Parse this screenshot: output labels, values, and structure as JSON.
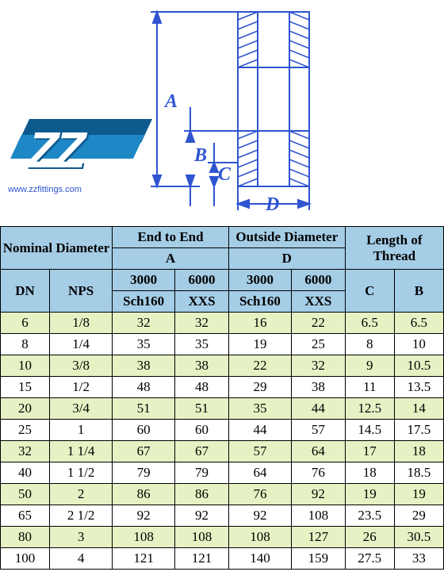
{
  "diagram": {
    "labels": {
      "A": "A",
      "B": "B",
      "C": "C",
      "D": "D"
    },
    "colors": {
      "line": "#2f54d0",
      "label": "#2f54d0",
      "hatch": "#2f54d0",
      "logo_dark": "#0d5a8f",
      "logo_light": "#1e88c7",
      "logo_text": "ZZ"
    }
  },
  "site_url": "www.zzfittings.com",
  "header": {
    "nominal_diameter": "Nominal Diameter",
    "end_to_end": "End to End",
    "outside_diameter": "Outside Diameter",
    "length_of_thread": "Length of Thread",
    "A": "A",
    "D": "D",
    "DN": "DN",
    "NPS": "NPS",
    "p3000": "3000",
    "p6000": "6000",
    "sch160": "Sch160",
    "xxs": "XXS",
    "C_hdr": "C",
    "B_hdr": "B"
  },
  "rows": [
    {
      "dn": "6",
      "nps": "1/8",
      "a3": "32",
      "a6": "32",
      "d3": "16",
      "d6": "22",
      "c": "6.5",
      "b": "6.5"
    },
    {
      "dn": "8",
      "nps": "1/4",
      "a3": "35",
      "a6": "35",
      "d3": "19",
      "d6": "25",
      "c": "8",
      "b": "10"
    },
    {
      "dn": "10",
      "nps": "3/8",
      "a3": "38",
      "a6": "38",
      "d3": "22",
      "d6": "32",
      "c": "9",
      "b": "10.5"
    },
    {
      "dn": "15",
      "nps": "1/2",
      "a3": "48",
      "a6": "48",
      "d3": "29",
      "d6": "38",
      "c": "11",
      "b": "13.5"
    },
    {
      "dn": "20",
      "nps": "3/4",
      "a3": "51",
      "a6": "51",
      "d3": "35",
      "d6": "44",
      "c": "12.5",
      "b": "14"
    },
    {
      "dn": "25",
      "nps": "1",
      "a3": "60",
      "a6": "60",
      "d3": "44",
      "d6": "57",
      "c": "14.5",
      "b": "17.5"
    },
    {
      "dn": "32",
      "nps": "1 1/4",
      "a3": "67",
      "a6": "67",
      "d3": "57",
      "d6": "64",
      "c": "17",
      "b": "18"
    },
    {
      "dn": "40",
      "nps": "1 1/2",
      "a3": "79",
      "a6": "79",
      "d3": "64",
      "d6": "76",
      "c": "18",
      "b": "18.5"
    },
    {
      "dn": "50",
      "nps": "2",
      "a3": "86",
      "a6": "86",
      "d3": "76",
      "d6": "92",
      "c": "19",
      "b": "19"
    },
    {
      "dn": "65",
      "nps": "2 1/2",
      "a3": "92",
      "a6": "92",
      "d3": "92",
      "d6": "108",
      "c": "23.5",
      "b": "29"
    },
    {
      "dn": "80",
      "nps": "3",
      "a3": "108",
      "a6": "108",
      "d3": "108",
      "d6": "127",
      "c": "26",
      "b": "30.5"
    },
    {
      "dn": "100",
      "nps": "4",
      "a3": "121",
      "a6": "121",
      "d3": "140",
      "d6": "159",
      "c": "27.5",
      "b": "33"
    }
  ],
  "styling": {
    "header_bg": "#a5cde6",
    "row_odd_bg": "#e6f2c4",
    "row_even_bg": "#ffffff",
    "border_color": "#000000",
    "font_family": "Times New Roman",
    "cell_fontsize": 17,
    "url_color": "#2f54d0"
  }
}
